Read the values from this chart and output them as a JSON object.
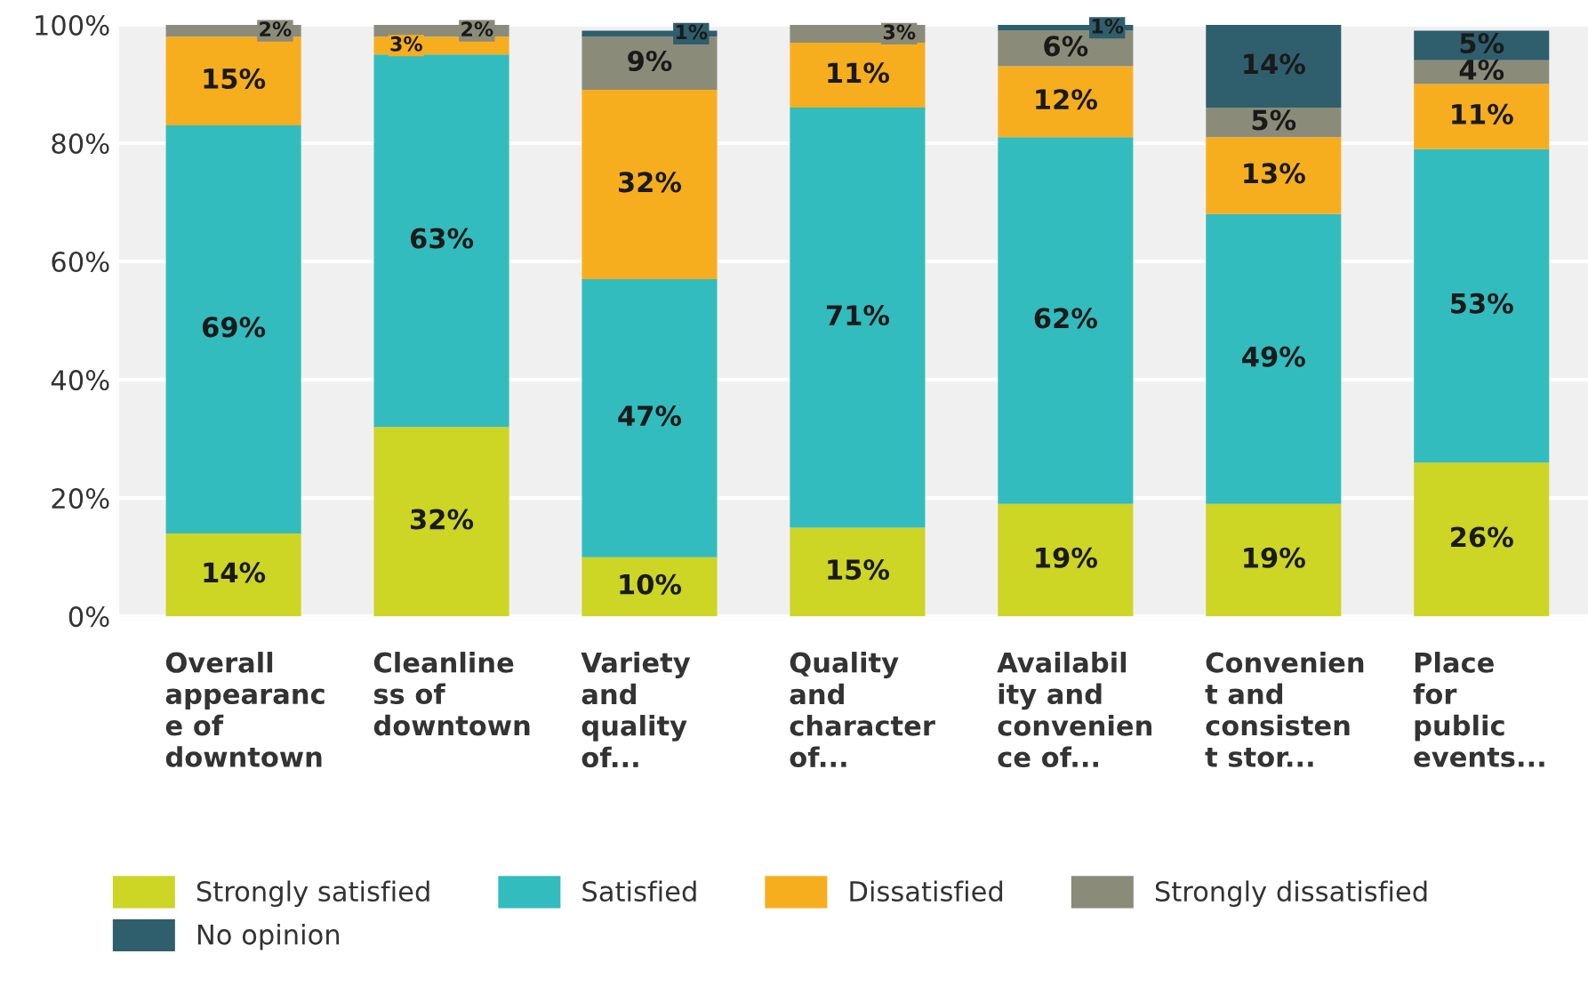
{
  "chart_data": {
    "type": "bar",
    "stacked": true,
    "categories": [
      "Overall\nappearanc\ne of\ndowntown",
      "Cleanline\nss of\ndowntown",
      "Variety\nand\nquality\nof...",
      "Quality\nand\ncharacter\nof...",
      "Availabil\nity and\nconvenien\nce of...",
      "Convenien\nt and\nconsisten\nt stor...",
      "Place\nfor\npublic\nevents..."
    ],
    "series": [
      {
        "name": "Strongly satisfied",
        "color": "#cdd525",
        "values": [
          14,
          32,
          10,
          15,
          19,
          19,
          26
        ],
        "value_labels": [
          "14%",
          "32%",
          "10%",
          "15%",
          "19%",
          "19%",
          "26%"
        ]
      },
      {
        "name": "Satisfied",
        "color": "#33bcbe",
        "values": [
          69,
          63,
          47,
          71,
          62,
          49,
          53
        ],
        "value_labels": [
          "69%",
          "63%",
          "47%",
          "71%",
          "62%",
          "49%",
          "53%"
        ]
      },
      {
        "name": "Dissatisfied",
        "color": "#f7ae1e",
        "values": [
          15,
          3,
          32,
          11,
          12,
          13,
          11
        ],
        "value_labels": [
          "15%",
          "3%",
          "32%",
          "11%",
          "12%",
          "13%",
          "11%"
        ]
      },
      {
        "name": "Strongly dissatisfied",
        "color": "#8b8b7a",
        "values": [
          2,
          2,
          9,
          3,
          6,
          5,
          4
        ],
        "value_labels": [
          "2%",
          "2%",
          "9%",
          "3%",
          "6%",
          "5%",
          "4%"
        ]
      },
      {
        "name": "No opinion",
        "color": "#2f5e6c",
        "values": [
          null,
          null,
          1,
          null,
          1,
          14,
          5
        ],
        "value_labels": [
          null,
          null,
          "1%",
          null,
          "1%",
          "14%",
          "5%"
        ]
      }
    ],
    "ylim": [
      0,
      100
    ],
    "yticks": [
      {
        "value": 0,
        "label": "0%"
      },
      {
        "value": 20,
        "label": "20%"
      },
      {
        "value": 40,
        "label": "40%"
      },
      {
        "value": 60,
        "label": "60%"
      },
      {
        "value": 80,
        "label": "80%"
      },
      {
        "value": 100,
        "label": "100%"
      }
    ],
    "grid": "y",
    "legend": "bottom"
  }
}
